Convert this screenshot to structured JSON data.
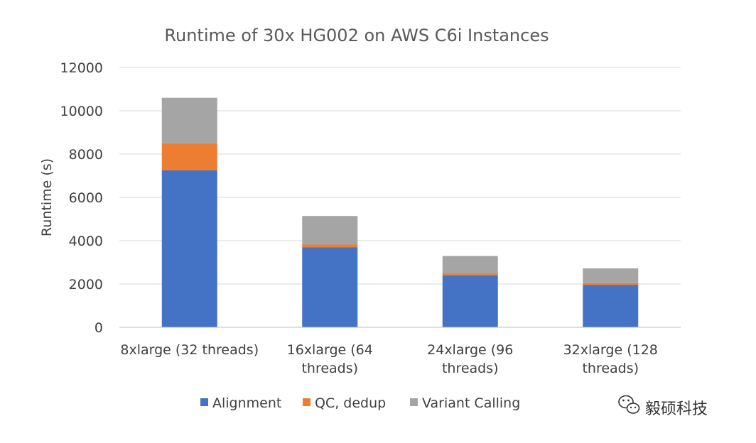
{
  "chart_data": {
    "type": "bar",
    "stacked": true,
    "title": "Runtime of 30x HG002 on AWS C6i Instances",
    "ylabel": "Runtime (s)",
    "xlabel": "",
    "ylim": [
      0,
      12000
    ],
    "yticks": [
      0,
      2000,
      4000,
      6000,
      8000,
      10000,
      12000
    ],
    "grid": true,
    "legend_position": "bottom",
    "categories": [
      [
        "8xlarge (32 threads)"
      ],
      [
        "16xlarge (64",
        "threads)"
      ],
      [
        "24xlarge (96",
        "threads)"
      ],
      [
        "32xlarge (128",
        "threads)"
      ]
    ],
    "series": [
      {
        "name": "Alignment",
        "color": "#4472c4",
        "values": [
          7250,
          3700,
          2400,
          1950
        ]
      },
      {
        "name": "QC, dedup",
        "color": "#ed7d31",
        "values": [
          1250,
          120,
          90,
          90
        ]
      },
      {
        "name": "Variant Calling",
        "color": "#a5a5a5",
        "values": [
          2100,
          1320,
          800,
          680
        ]
      }
    ]
  },
  "watermark": {
    "text": "毅硕科技",
    "icon": "wechat-icon"
  }
}
